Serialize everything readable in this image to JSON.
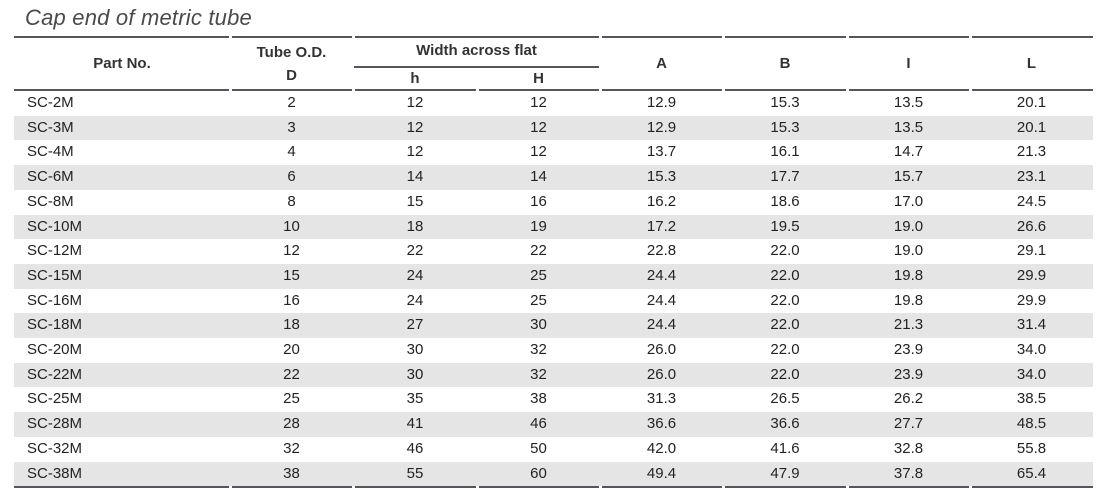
{
  "page": {
    "title": "Cap end of metric tube"
  },
  "table": {
    "columns": {
      "part_no": "Part No.",
      "tube_od_line1": "Tube O.D.",
      "tube_od_line2": "D",
      "width_across_flat": "Width across flat",
      "h_lower": "h",
      "h_upper": "H",
      "a": "A",
      "b": "B",
      "i": "I",
      "l": "L"
    },
    "rows": [
      [
        "SC-2M",
        "2",
        "12",
        "12",
        "12.9",
        "15.3",
        "13.5",
        "20.1"
      ],
      [
        "SC-3M",
        "3",
        "12",
        "12",
        "12.9",
        "15.3",
        "13.5",
        "20.1"
      ],
      [
        "SC-4M",
        "4",
        "12",
        "12",
        "13.7",
        "16.1",
        "14.7",
        "21.3"
      ],
      [
        "SC-6M",
        "6",
        "14",
        "14",
        "15.3",
        "17.7",
        "15.7",
        "23.1"
      ],
      [
        "SC-8M",
        "8",
        "15",
        "16",
        "16.2",
        "18.6",
        "17.0",
        "24.5"
      ],
      [
        "SC-10M",
        "10",
        "18",
        "19",
        "17.2",
        "19.5",
        "19.0",
        "26.6"
      ],
      [
        "SC-12M",
        "12",
        "22",
        "22",
        "22.8",
        "22.0",
        "19.0",
        "29.1"
      ],
      [
        "SC-15M",
        "15",
        "24",
        "25",
        "24.4",
        "22.0",
        "19.8",
        "29.9"
      ],
      [
        "SC-16M",
        "16",
        "24",
        "25",
        "24.4",
        "22.0",
        "19.8",
        "29.9"
      ],
      [
        "SC-18M",
        "18",
        "27",
        "30",
        "24.4",
        "22.0",
        "21.3",
        "31.4"
      ],
      [
        "SC-20M",
        "20",
        "30",
        "32",
        "26.0",
        "22.0",
        "23.9",
        "34.0"
      ],
      [
        "SC-22M",
        "22",
        "30",
        "32",
        "26.0",
        "22.0",
        "23.9",
        "34.0"
      ],
      [
        "SC-25M",
        "25",
        "35",
        "38",
        "31.3",
        "26.5",
        "26.2",
        "38.5"
      ],
      [
        "SC-28M",
        "28",
        "41",
        "46",
        "36.6",
        "36.6",
        "27.7",
        "48.5"
      ],
      [
        "SC-32M",
        "32",
        "46",
        "50",
        "42.0",
        "41.6",
        "32.8",
        "55.8"
      ],
      [
        "SC-38M",
        "38",
        "55",
        "60",
        "49.4",
        "47.9",
        "37.8",
        "65.4"
      ]
    ]
  },
  "colors": {
    "stripe": "#e5e5e6",
    "rule": "#55565a",
    "data_text": "#232323",
    "header_text": "#333333",
    "title_text": "#4a4a4a"
  }
}
